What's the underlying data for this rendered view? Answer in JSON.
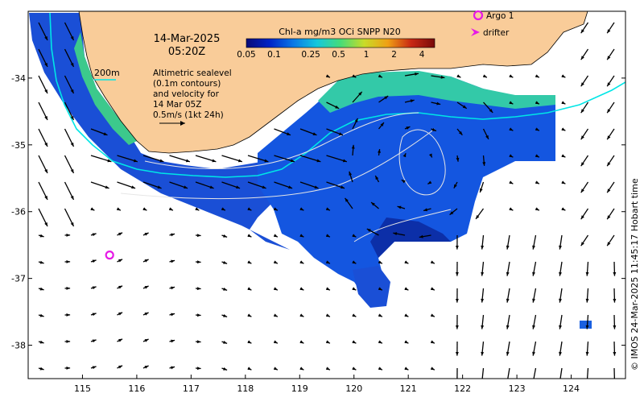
{
  "map": {
    "date": "14-Mar-2025",
    "time": "05:20Z",
    "isobath_label": "200m",
    "legend_text_lines": [
      "Altimetric sealevel",
      "(0.1m contours)",
      "and velocity for",
      "14 Mar 05Z",
      "0.5m/s (1kt 24h)"
    ],
    "colorbar": {
      "title": "Chl-a mg/m3 OCi SNPP N20",
      "tick_labels": [
        "0.05",
        "0.1",
        "0.25",
        "0.5",
        "1",
        "2",
        "4"
      ],
      "colors": [
        "#0a0a78",
        "#0024c8",
        "#0a78e6",
        "#14c8dc",
        "#46dc78",
        "#c8dc28",
        "#f0a014",
        "#c82814",
        "#780a0a"
      ]
    },
    "symbol_legend": {
      "argo_label": "Argo 1",
      "drifter_label": "drifter",
      "argo_color": "#e619e6",
      "drifter_color": "#e619e6"
    },
    "x_axis": {
      "labels": [
        "115",
        "116",
        "117",
        "118",
        "119",
        "120",
        "121",
        "122",
        "123",
        "124"
      ],
      "range": [
        114,
        125
      ]
    },
    "y_axis": {
      "labels": [
        "-34",
        "-35",
        "-36",
        "-37",
        "-38"
      ],
      "range": [
        -38.5,
        -33
      ]
    },
    "argo_float": {
      "lon": 115.5,
      "lat": -36.65
    },
    "credit": "© IMOS 24-Mar-2025 11:45:17 Hobart time",
    "colors": {
      "land": "#f9cc99",
      "ocean": "#ffffff",
      "isobath": "#00e6e6",
      "contour": "#e0e0e0",
      "arrow": "#000000"
    }
  }
}
